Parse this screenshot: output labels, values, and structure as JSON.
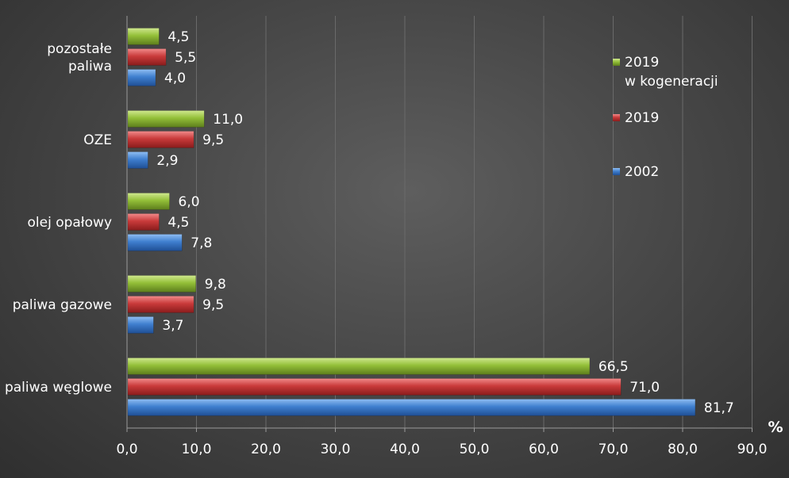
{
  "chart_data": {
    "type": "bar",
    "orientation": "horizontal",
    "categories": [
      "paliwa węglowe",
      "paliwa gazowe",
      "olej opałowy",
      "OZE",
      "pozostałe paliwa"
    ],
    "series": [
      {
        "name": "2002",
        "color": "#3f7fcf",
        "values": [
          81.7,
          3.7,
          7.8,
          2.9,
          4.0
        ]
      },
      {
        "name": "2019",
        "color": "#c93a3a",
        "values": [
          71.0,
          9.5,
          4.5,
          9.5,
          5.5
        ]
      },
      {
        "name": "2019 w kogeneracji",
        "color": "#93bf38",
        "values": [
          66.5,
          9.8,
          6.0,
          11.0,
          4.5
        ]
      }
    ],
    "xlim": [
      0,
      90
    ],
    "xticks": [
      "0,0",
      "10,0",
      "20,0",
      "30,0",
      "40,0",
      "50,0",
      "60,0",
      "70,0",
      "80,0",
      "90,0"
    ],
    "x_unit": "%",
    "legend": {
      "placement": "right",
      "entries": [
        {
          "lines": [
            "2019",
            "w kogeneracji"
          ],
          "color": "#93bf38"
        },
        {
          "lines": [
            "2019"
          ],
          "color": "#c93a3a"
        },
        {
          "lines": [
            "2002"
          ],
          "color": "#3f7fcf"
        }
      ]
    },
    "grid": true
  }
}
